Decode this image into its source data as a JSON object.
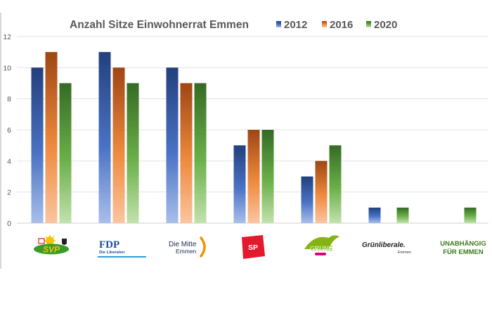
{
  "chart_data": {
    "type": "bar",
    "title": "Anzahl Sitze Einwohnerrat Emmen",
    "xlabel": "",
    "ylabel": "",
    "ylim": [
      0,
      12
    ],
    "yticks": [
      "0",
      "2",
      "4",
      "6",
      "8",
      "10",
      "12"
    ],
    "grid": true,
    "legend_position": "top-right",
    "categories": [
      "SVP",
      "FDP",
      "Die Mitte Emmen",
      "SP",
      "GRÜNE",
      "Grünliberale Emmen",
      "UNABHÄNGIG FÜR EMMEN"
    ],
    "series": [
      {
        "name": "2012",
        "values": [
          10,
          11,
          10,
          5,
          3,
          1,
          0
        ],
        "color": "#2f4e8f"
      },
      {
        "name": "2016",
        "values": [
          11,
          10,
          9,
          6,
          4,
          0,
          0
        ],
        "color": "#b5541a"
      },
      {
        "name": "2020",
        "values": [
          9,
          9,
          9,
          6,
          5,
          1,
          1
        ],
        "color": "#3f7a2a"
      }
    ]
  },
  "logos": {
    "svp": "SVP",
    "fdp_main": "FDP",
    "fdp_sub": "Die Liberalen",
    "mitte_main": "Die Mitte",
    "mitte_sub": "Emmen",
    "sp": "SP",
    "gruene": "GRÜNE",
    "grunliberale_main": "Grünliberale.",
    "grunliberale_sub": "Emmen",
    "unabhaengig_line1": "UNABHÄNGIG",
    "unabhaengig_line2": "FÜR EMMEN"
  },
  "colors": {
    "svp_green": "#3a9a2a",
    "svp_yellow": "#f2c500",
    "fdp_blue": "#1d4f9c",
    "mitte_orange": "#f29200",
    "sp_red": "#e3192d",
    "gruene_green": "#84b414",
    "unabhaengig_green": "#3d7a1c"
  }
}
